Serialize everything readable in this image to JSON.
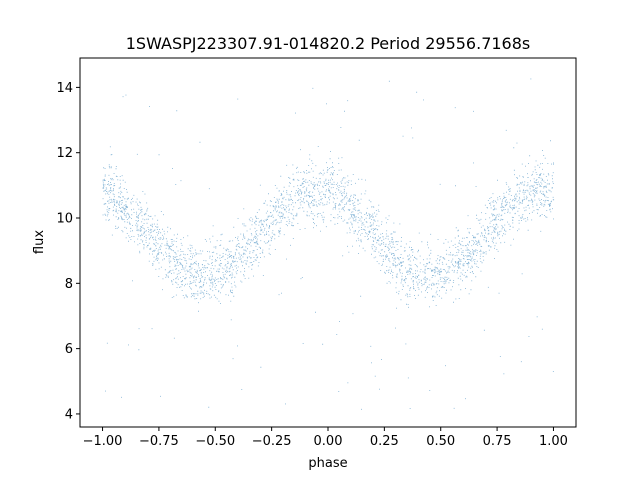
{
  "chart_data": {
    "type": "scatter",
    "title": "1SWASPJ223307.91-014820.2 Period 29556.7168s",
    "xlabel": "phase",
    "ylabel": "flux",
    "xlim": [
      -1.1,
      1.1
    ],
    "ylim": [
      3.6,
      14.9
    ],
    "x_ticks": [
      "−1.00",
      "−0.75",
      "−0.50",
      "−0.25",
      "0.00",
      "0.25",
      "0.50",
      "0.75",
      "1.00"
    ],
    "x_tick_values": [
      -1.0,
      -0.75,
      -0.5,
      -0.25,
      0.0,
      0.25,
      0.5,
      0.75,
      1.0
    ],
    "y_ticks": [
      "4",
      "6",
      "8",
      "10",
      "12",
      "14"
    ],
    "y_tick_values": [
      4,
      6,
      8,
      10,
      12,
      14
    ],
    "grid": false,
    "point_color": "#1f77b4",
    "series": [
      {
        "model": "sinusoid",
        "phase_range": [
          -1.0,
          1.0
        ],
        "mean": 9.55,
        "amplitude": 1.3,
        "peak_phase": -0.05,
        "period_in_phase": 1.0,
        "scatter_std": 0.45,
        "n_points": 16000,
        "outlier_fraction": 0.03,
        "outlier_range": [
          4.0,
          14.3
        ]
      }
    ]
  }
}
